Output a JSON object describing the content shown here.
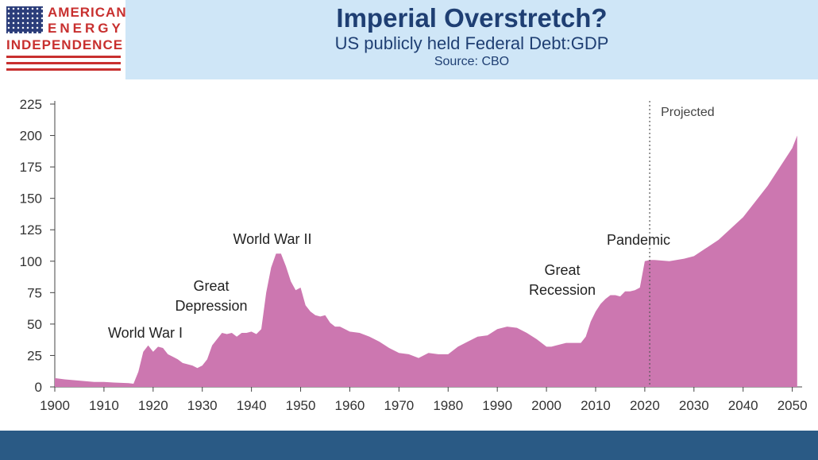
{
  "logo": {
    "line1": "AMERICAN",
    "line2": "ENERGY",
    "line3": "INDEPENDENCE"
  },
  "header": {
    "title": "Imperial Overstretch?",
    "subtitle": "US publicly held Federal Debt:GDP",
    "source": "Source: CBO"
  },
  "colors": {
    "area": "#cc77b0",
    "header_bg": "#cfe6f7",
    "title": "#1f3f73",
    "footer": "#2a5a85"
  },
  "chart_data": {
    "type": "area",
    "xlim": [
      1900,
      2052
    ],
    "ylim": [
      0,
      225
    ],
    "yticks": [
      0,
      25,
      50,
      75,
      100,
      125,
      150,
      175,
      200,
      225
    ],
    "xticks": [
      1900,
      1910,
      1920,
      1930,
      1940,
      1950,
      1960,
      1970,
      1980,
      1990,
      2000,
      2010,
      2020,
      2030,
      2040,
      2050
    ],
    "projection_start": 2021,
    "projection_label": "Projected",
    "series": [
      {
        "x": [
          1900,
          1902,
          1905,
          1908,
          1910,
          1912,
          1915,
          1916,
          1917,
          1918,
          1919,
          1920,
          1921,
          1922,
          1923,
          1924,
          1925,
          1926,
          1927,
          1928,
          1929,
          1930,
          1931,
          1932,
          1933,
          1934,
          1935,
          1936,
          1937,
          1938,
          1939,
          1940,
          1941,
          1942,
          1943,
          1944,
          1945,
          1946,
          1947,
          1948,
          1949,
          1950,
          1951,
          1952,
          1953,
          1954,
          1955,
          1956,
          1957,
          1958,
          1959,
          1960,
          1962,
          1964,
          1966,
          1968,
          1970,
          1972,
          1974,
          1976,
          1978,
          1980,
          1982,
          1984,
          1986,
          1988,
          1990,
          1992,
          1994,
          1996,
          1998,
          2000,
          2001,
          2002,
          2004,
          2006,
          2007,
          2008,
          2009,
          2010,
          2011,
          2012,
          2013,
          2014,
          2015,
          2016,
          2017,
          2018,
          2019,
          2020,
          2021,
          2022,
          2025,
          2028,
          2030,
          2035,
          2040,
          2045,
          2050,
          2051
        ],
        "y": [
          7,
          6,
          5,
          4,
          4,
          3.5,
          3,
          2.5,
          12,
          28,
          33,
          28,
          32,
          31,
          26,
          24,
          22,
          19,
          18,
          17,
          15,
          17,
          22,
          33,
          38,
          43,
          42,
          43,
          40,
          43,
          43,
          44,
          42,
          46,
          75,
          95,
          106,
          106,
          96,
          84,
          77,
          79,
          65,
          60,
          57,
          56,
          57,
          51,
          48,
          48,
          46,
          44,
          43,
          40,
          36,
          31,
          27,
          26,
          23,
          27,
          26,
          26,
          32,
          36,
          40,
          41,
          46,
          48,
          47,
          43,
          38,
          32,
          32,
          33,
          35,
          35,
          35,
          40,
          52,
          60,
          66,
          70,
          73,
          73,
          72,
          76,
          76,
          77,
          79,
          100,
          101,
          101,
          100,
          102,
          104,
          117,
          135,
          160,
          190,
          200
        ]
      }
    ],
    "annotations": [
      {
        "label_lines": [
          "World War I"
        ]
      },
      {
        "label_lines": [
          "Great",
          "Depression"
        ]
      },
      {
        "label_lines": [
          "World War II"
        ]
      },
      {
        "label_lines": [
          "Great",
          "Recession"
        ]
      },
      {
        "label_lines": [
          "Pandemic"
        ]
      }
    ]
  }
}
